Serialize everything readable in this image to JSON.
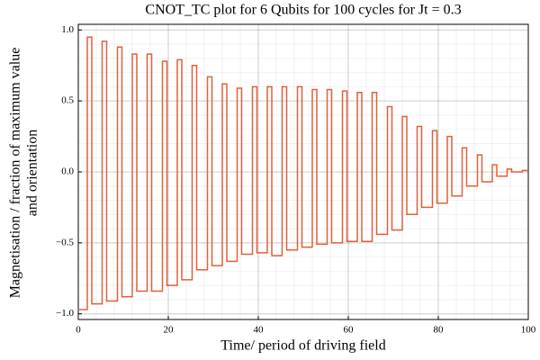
{
  "chart_data": {
    "type": "step",
    "title": "CNOT_TC plot for 6 Qubits for 100 cycles for Jt = 0.3",
    "x_label": "Time/ period of driving field",
    "y_label": [
      "Magnetisation / fraction of maximum value",
      "and orientation"
    ],
    "xlim": [
      0,
      100
    ],
    "xticks": [
      0,
      20,
      40,
      60,
      80,
      100
    ],
    "ylim": [
      -1.04,
      1.04
    ],
    "yticks": [
      {
        "value": -1,
        "label": "−1.0"
      },
      {
        "value": -0.5,
        "label": "−0.5"
      },
      {
        "value": 0,
        "label": "0.0"
      },
      0.5,
      {
        "value": 1,
        "label": "1.0"
      }
    ],
    "grid": true,
    "series": [
      {
        "color": "#e0603a",
        "x": [
          0,
          2,
          3,
          5.3,
          6.3,
          8.7,
          9.7,
          12,
          13,
          15.3,
          16.3,
          18.7,
          19.7,
          22,
          23,
          25.3,
          26.3,
          28.7,
          29.7,
          32,
          33,
          35.3,
          36.3,
          38.7,
          39.7,
          42,
          43,
          45.3,
          46.3,
          48.7,
          49.7,
          52,
          53,
          55.3,
          56.3,
          58.7,
          59.7,
          62,
          63,
          65.3,
          66.3,
          68.7,
          69.7,
          72,
          73,
          75.3,
          76.3,
          78.7,
          79.7,
          82,
          83,
          85.3,
          86.3,
          88.7,
          89.7,
          92,
          93,
          95.3,
          96.3,
          98.7,
          99.7
        ],
        "values": [
          -0.97,
          0.95,
          -0.93,
          0.92,
          -0.91,
          0.88,
          -0.88,
          0.83,
          -0.84,
          0.83,
          -0.84,
          0.78,
          -0.8,
          0.79,
          -0.76,
          0.75,
          -0.69,
          0.67,
          -0.66,
          0.62,
          -0.63,
          0.59,
          -0.58,
          0.6,
          -0.57,
          0.6,
          -0.59,
          0.6,
          -0.55,
          0.6,
          -0.53,
          0.58,
          -0.51,
          0.58,
          -0.5,
          0.57,
          -0.49,
          0.56,
          -0.49,
          0.56,
          -0.44,
          0.46,
          -0.41,
          0.39,
          -0.3,
          0.32,
          -0.25,
          0.29,
          -0.22,
          0.25,
          -0.17,
          0.17,
          -0.1,
          0.12,
          -0.07,
          0.05,
          -0.03,
          0.02,
          0,
          0.01,
          0.01
        ]
      }
    ]
  }
}
